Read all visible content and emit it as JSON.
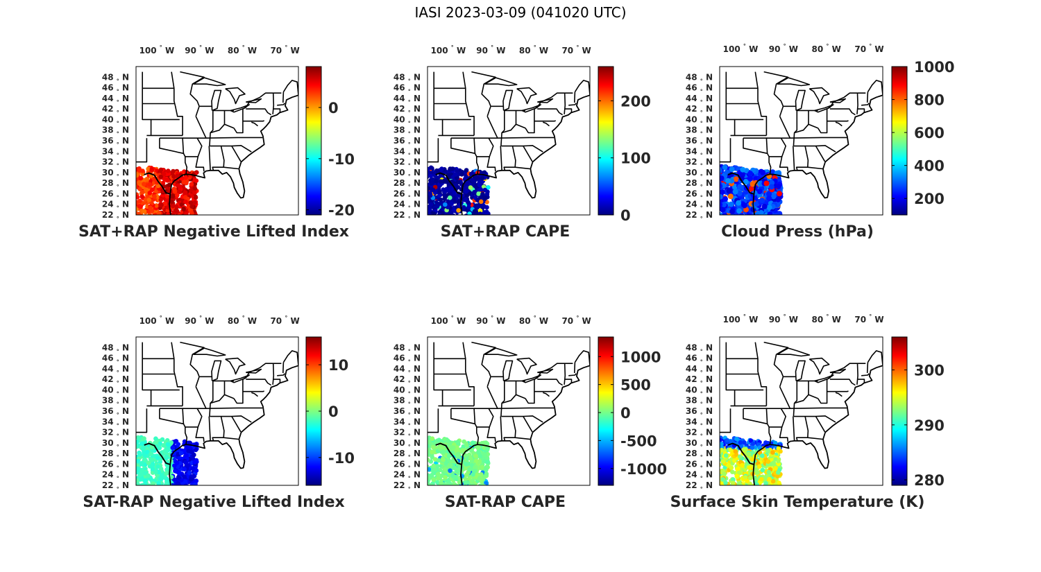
{
  "figure_title": "IASI 2023-03-09 (041020 UTC)",
  "map_ticks": {
    "lon": [
      "100",
      "90",
      "80",
      "70"
    ],
    "lon_values": [
      -100,
      -90,
      -80,
      -70
    ],
    "lon_hemisphere": "W",
    "lat": [
      "48",
      "46",
      "44",
      "42",
      "40",
      "38",
      "36",
      "34",
      "32",
      "30",
      "28",
      "26",
      "24",
      "22"
    ],
    "lat_values": [
      48,
      46,
      44,
      42,
      40,
      38,
      36,
      34,
      32,
      30,
      28,
      26,
      24,
      22
    ],
    "lat_hemisphere": "N",
    "degree_symbol": "°"
  },
  "map_extent": {
    "lon": [
      -105.5,
      -67.5
    ],
    "lat": [
      22,
      50
    ]
  },
  "colormap": "jet",
  "panels": [
    {
      "id": "sat-rap-plus-nli",
      "title": "SAT+RAP Negative Lifted Index",
      "colorbar": {
        "range": [
          -21,
          8
        ],
        "ticks": [
          "0",
          "-10",
          "-20"
        ],
        "tick_values": [
          0,
          -10,
          -20
        ]
      },
      "data_hint": "mostly 0 to 7 with orange/red values, green-yellow west"
    },
    {
      "id": "sat-rap-plus-cape",
      "title": "SAT+RAP CAPE",
      "colorbar": {
        "range": [
          0,
          260
        ],
        "ticks": [
          "200",
          "100",
          "0"
        ],
        "tick_values": [
          200,
          100,
          0
        ]
      },
      "data_hint": "mostly near 0 (dark blue) with scattered high values"
    },
    {
      "id": "cloud-press",
      "title": "Cloud Press (hPa)",
      "colorbar": {
        "range": [
          100,
          1000
        ],
        "ticks": [
          "1000",
          "800",
          "600",
          "400",
          "200"
        ],
        "tick_values": [
          1000,
          800,
          600,
          400,
          200
        ]
      },
      "data_hint": "mostly 150-350 hPa blue, a few ~850 hPa orange dots"
    },
    {
      "id": "sat-minus-rap-nli",
      "title": "SAT-RAP Negative Lifted Index",
      "colorbar": {
        "range": [
          -16,
          16
        ],
        "ticks": [
          "10",
          "0",
          "-10"
        ],
        "tick_values": [
          10,
          0,
          -10
        ]
      },
      "data_hint": "west near -2 cyan-green, east near -14 blue"
    },
    {
      "id": "sat-minus-rap-cape",
      "title": "SAT-RAP CAPE",
      "colorbar": {
        "range": [
          -1300,
          1350
        ],
        "ticks": [
          "1000",
          "500",
          "0",
          "-500",
          "-1000"
        ],
        "tick_values": [
          1000,
          500,
          0,
          -500,
          -1000
        ]
      },
      "data_hint": "mostly near 0 green"
    },
    {
      "id": "surface-skin-temp",
      "title": "Surface Skin Temperature (K)",
      "colorbar": {
        "range": [
          279,
          306
        ],
        "ticks": [
          "300",
          "290",
          "280"
        ],
        "tick_values": [
          300,
          290,
          280
        ]
      },
      "data_hint": "north near 284 blue, south near 297 yellow"
    }
  ]
}
